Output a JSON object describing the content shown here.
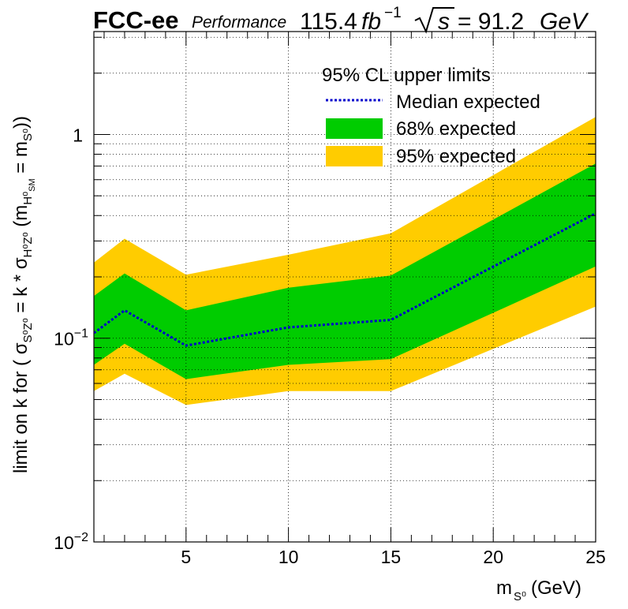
{
  "header": {
    "experiment": "FCC-ee",
    "status": "Performance",
    "lumi_value": "115.4",
    "lumi_unit": "fb",
    "lumi_exp": "−1",
    "sqrt_s_label": "= 91.2",
    "energy_unit": "GeV"
  },
  "colors": {
    "band95": "#ffcc00",
    "band68": "#00cc00",
    "median": "#0000cc",
    "grid": "#000000"
  },
  "chart_data": {
    "type": "area",
    "xlabel": "m_{S^0} (GeV)",
    "ylabel": "limit on k for ( σ_{S0Z0} = k * σ_{H0_SM Z0} (m_{H0_SM} = m_{S0}))",
    "xlim": [
      0.5,
      25
    ],
    "ylim": [
      0.01,
      3.2
    ],
    "y_scale": "log",
    "grid": true,
    "legend_position": "top-right",
    "x_ticks": [
      5,
      10,
      15,
      20,
      25
    ],
    "y_ticks": [
      {
        "value": 0.01,
        "mantissa": "10",
        "exponent": "−2"
      },
      {
        "value": 0.1,
        "mantissa": "10",
        "exponent": "−1"
      },
      {
        "value": 1,
        "mantissa": "1",
        "exponent": ""
      }
    ],
    "x": [
      0.5,
      2,
      5,
      10,
      15,
      25
    ],
    "series": [
      {
        "name": "Median expected",
        "values": [
          0.106,
          0.137,
          0.092,
          0.113,
          0.123,
          0.41
        ]
      },
      {
        "name": "68% expected",
        "lower": [
          0.074,
          0.094,
          0.063,
          0.074,
          0.079,
          0.225
        ],
        "upper": [
          0.161,
          0.208,
          0.137,
          0.177,
          0.203,
          0.72
        ]
      },
      {
        "name": "95% expected",
        "lower": [
          0.055,
          0.067,
          0.047,
          0.055,
          0.055,
          0.143
        ],
        "upper": [
          0.235,
          0.308,
          0.205,
          0.257,
          0.327,
          1.22
        ]
      }
    ],
    "legend_title": "95% CL upper limits"
  },
  "axis_text": {
    "x_title_m": "m",
    "x_title_sub": "S⁰",
    "x_title_unit": " (GeV)"
  }
}
